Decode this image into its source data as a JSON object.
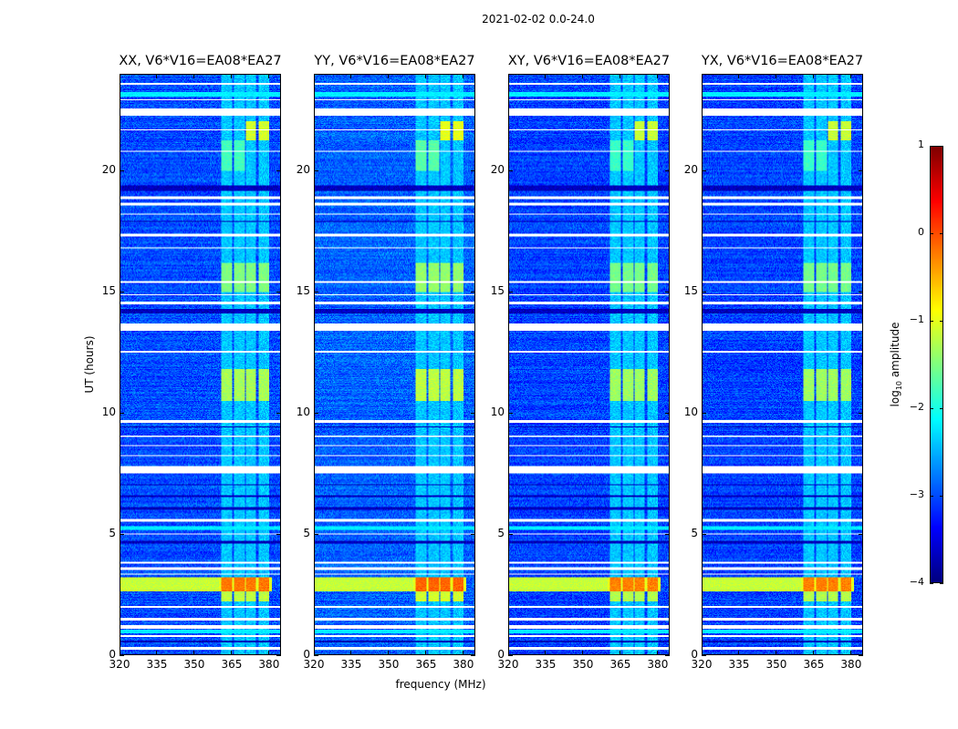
{
  "chart_data": {
    "type": "heatmap",
    "title": "2021-02-02 0.0-24.0",
    "xlabel": "frequency (MHz)",
    "ylabel": "UT (hours)",
    "xlim": [
      320,
      384.8
    ],
    "ylim": [
      0,
      24
    ],
    "xticks": [
      "320",
      "335",
      "350",
      "365",
      "380"
    ],
    "xtick_values": [
      320,
      335,
      350,
      365,
      380
    ],
    "yticks": [
      "0",
      "5",
      "10",
      "15",
      "20"
    ],
    "ytick_values": [
      0,
      5,
      10,
      15,
      20
    ],
    "colormap": "jet",
    "colorbar": {
      "label_prefix": "log",
      "label_sub": "10",
      "label_suffix": " amplitude",
      "range": [
        -4,
        1
      ],
      "ticks": [
        "−4",
        "−3",
        "−2",
        "−1",
        "0",
        "1"
      ],
      "tick_values": [
        -4,
        -3,
        -2,
        -1,
        0,
        1
      ]
    },
    "panels": [
      {
        "title": "XX, V6*V16=EA08*EA27",
        "offset": 0.0
      },
      {
        "title": "YY, V6*V16=EA08*EA27",
        "offset": 0.1
      },
      {
        "title": "XY, V6*V16=EA08*EA27",
        "offset": -0.05
      },
      {
        "title": "YX, V6*V16=EA08*EA27",
        "offset": -0.05
      }
    ],
    "background_level": -3.0,
    "rfi_channel_groups_mhz": [
      [
        361,
        365.5
      ],
      [
        366,
        370.5
      ],
      [
        371,
        375
      ],
      [
        376,
        380.3
      ]
    ],
    "events": [
      {
        "hours": [
          2.6,
          3.2
        ],
        "broadband_level": -1.0,
        "group_level": -0.2
      },
      {
        "hours": [
          2.2,
          2.6
        ],
        "broadband_level": -3.0,
        "group_level": -1.2
      },
      {
        "hours": [
          10.5,
          11.8
        ],
        "broadband_level": -3.0,
        "group_level": -1.3
      },
      {
        "hours": [
          15.0,
          16.2
        ],
        "broadband_level": -3.0,
        "group_level": -1.5
      },
      {
        "hours": [
          21.3,
          22.1
        ],
        "broadband_level": -3.0,
        "group_level": -1.1,
        "groups": [
          2,
          3
        ]
      },
      {
        "hours": [
          20.0,
          21.3
        ],
        "broadband_level": -3.0,
        "group_level": -1.8,
        "groups": [
          0,
          1
        ]
      }
    ],
    "bright_rows_hours": [
      [
        0.85,
        1.0
      ],
      [
        5.15,
        5.3
      ],
      [
        23.1,
        23.3
      ]
    ],
    "flagged_rows_hours": [
      [
        0.2,
        0.3
      ],
      [
        0.7,
        0.8
      ],
      [
        1.05,
        1.2
      ],
      [
        1.4,
        1.5
      ],
      [
        1.9,
        2.0
      ],
      [
        3.3,
        3.35
      ],
      [
        3.5,
        3.6
      ],
      [
        3.75,
        3.85
      ],
      [
        4.95,
        5.0
      ],
      [
        5.5,
        5.6
      ],
      [
        7.5,
        7.8
      ],
      [
        8.2,
        8.25
      ],
      [
        8.6,
        8.65
      ],
      [
        9.0,
        9.05
      ],
      [
        9.6,
        9.7
      ],
      [
        12.5,
        12.55
      ],
      [
        13.4,
        13.7
      ],
      [
        14.5,
        14.6
      ],
      [
        14.85,
        14.9
      ],
      [
        15.4,
        15.45
      ],
      [
        16.8,
        16.85
      ],
      [
        17.3,
        17.4
      ],
      [
        18.2,
        18.25
      ],
      [
        18.6,
        18.7
      ],
      [
        18.85,
        18.95
      ],
      [
        20.8,
        20.85
      ],
      [
        21.7,
        21.75
      ],
      [
        22.3,
        22.6
      ],
      [
        22.95,
        23.0
      ],
      [
        23.6,
        23.65
      ]
    ],
    "dark_rows_hours": [
      [
        0.5,
        0.55
      ],
      [
        4.6,
        4.7
      ],
      [
        6.0,
        6.1
      ],
      [
        6.5,
        6.6
      ],
      [
        7.0,
        7.05
      ],
      [
        9.4,
        9.45
      ],
      [
        14.1,
        14.3
      ],
      [
        19.2,
        19.4
      ],
      [
        17.9,
        17.95
      ]
    ]
  }
}
